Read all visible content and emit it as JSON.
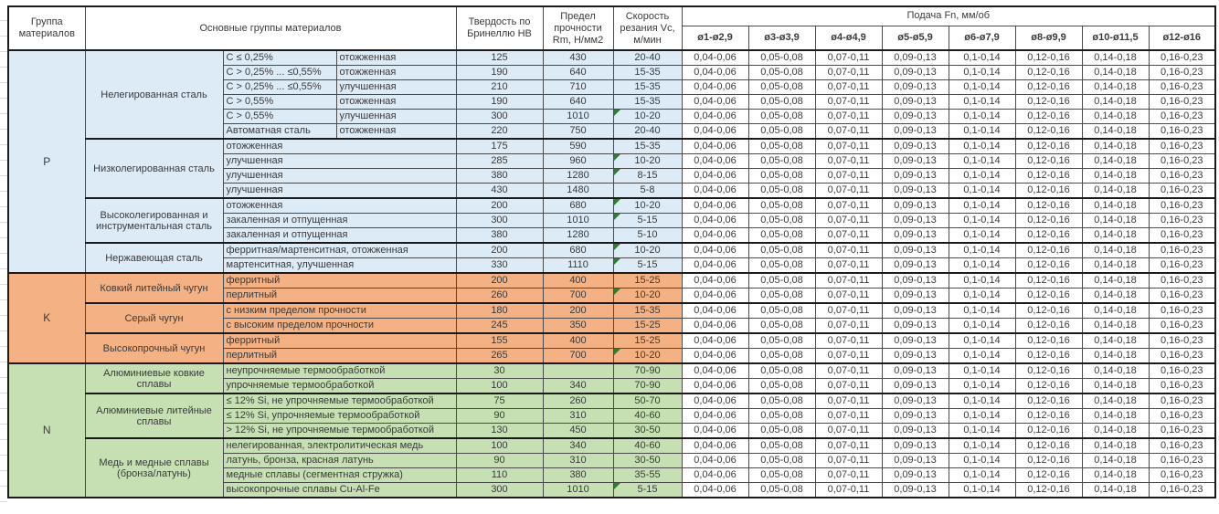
{
  "header": {
    "col_group": "Группа материалов",
    "col_main": "Основные группы материалов",
    "col_hb": "Твердость по Бринеллю HB",
    "col_rm": "Предел прочности Rm, Н/мм2",
    "col_vc": "Скорость резания Vc, м/мин",
    "feed_title": "Подача Fn, мм/об",
    "feed_cols": [
      "ø1-ø2,9",
      "ø3-ø3,9",
      "ø4-ø4,9",
      "ø5-ø5,9",
      "ø6-ø7,9",
      "ø8-ø9,9",
      "ø10-ø11,5",
      "ø12-ø16"
    ]
  },
  "feed_values": [
    "0,04-0,06",
    "0,05-0,08",
    "0,07-0,11",
    "0,09-0,13",
    "0,1-0,14",
    "0,12-0,16",
    "0,14-0,18",
    "0,16-0,23"
  ],
  "colors": {
    "group_p": "#DDEBF7",
    "group_k": "#F4B183",
    "group_n": "#C6E0B4",
    "note_triangle": "#2e7d32"
  },
  "groups": [
    {
      "code": "P",
      "color": "#DDEBF7",
      "subgroups": [
        {
          "name": "Нелегированная сталь",
          "rows": [
            {
              "c1": "C ≤ 0,25%",
              "c2": "отожженная",
              "hb": "125",
              "rm": "430",
              "vc": "20-40",
              "note": false
            },
            {
              "c1": "C > 0,25% ... ≤0,55%",
              "c2": "отожженная",
              "hb": "190",
              "rm": "640",
              "vc": "15-35",
              "note": false
            },
            {
              "c1": "C > 0,25% ... ≤0,55%",
              "c2": "улучшенная",
              "hb": "210",
              "rm": "710",
              "vc": "15-35",
              "note": false
            },
            {
              "c1": "C > 0,55%",
              "c2": "отожженная",
              "hb": "190",
              "rm": "640",
              "vc": "15-35",
              "note": false
            },
            {
              "c1": "C > 0,55%",
              "c2": "улучшенная",
              "hb": "300",
              "rm": "1010",
              "vc": "10-20",
              "note": true
            },
            {
              "c1": "Автоматная сталь",
              "c2": "отожженная",
              "hb": "220",
              "rm": "750",
              "vc": "20-40",
              "note": false
            }
          ]
        },
        {
          "name": "Низколегированная сталь",
          "rows": [
            {
              "c": "отожженная",
              "hb": "175",
              "rm": "590",
              "vc": "15-35",
              "note": false
            },
            {
              "c": "улучшенная",
              "hb": "285",
              "rm": "960",
              "vc": "10-20",
              "note": true
            },
            {
              "c": "улучшенная",
              "hb": "380",
              "rm": "1280",
              "vc": "8-15",
              "note": true
            },
            {
              "c": "улучшенная",
              "hb": "430",
              "rm": "1480",
              "vc": "5-8",
              "note": false
            }
          ]
        },
        {
          "name": "Высоколегированная и инструментальная сталь",
          "rows": [
            {
              "c": "отожженная",
              "hb": "200",
              "rm": "680",
              "vc": "10-20",
              "note": true
            },
            {
              "c": "закаленная и отпущенная",
              "hb": "300",
              "rm": "1010",
              "vc": "5-15",
              "note": true
            },
            {
              "c": "закаленная и отпущенная",
              "hb": "380",
              "rm": "1280",
              "vc": "5-10",
              "note": false
            }
          ]
        },
        {
          "name": "Нержавеющая сталь",
          "rows": [
            {
              "c": "ферритная/мартенситная, отожженная",
              "hb": "200",
              "rm": "680",
              "vc": "10-20",
              "note": true
            },
            {
              "c": "мартенситная, улучшенная",
              "hb": "330",
              "rm": "1110",
              "vc": "5-15",
              "note": true
            }
          ]
        }
      ]
    },
    {
      "code": "K",
      "color": "#F4B183",
      "subgroups": [
        {
          "name": "Ковкий литейный чугун",
          "rows": [
            {
              "c": "ферритный",
              "hb": "200",
              "rm": "400",
              "vc": "15-25",
              "note": false
            },
            {
              "c": "перлитный",
              "hb": "260",
              "rm": "700",
              "vc": "10-20",
              "note": true
            }
          ]
        },
        {
          "name": "Серый чугун",
          "rows": [
            {
              "c": "с низким пределом прочности",
              "hb": "180",
              "rm": "200",
              "vc": "15-35",
              "note": false
            },
            {
              "c": "с высоким пределом прочности",
              "hb": "245",
              "rm": "350",
              "vc": "15-25",
              "note": false
            }
          ]
        },
        {
          "name": "Высокопрочный чугун",
          "rows": [
            {
              "c": "ферритный",
              "hb": "155",
              "rm": "400",
              "vc": "15-25",
              "note": false
            },
            {
              "c": "перлитный",
              "hb": "265",
              "rm": "700",
              "vc": "10-20",
              "note": true
            }
          ]
        }
      ]
    },
    {
      "code": "N",
      "color": "#C6E0B4",
      "subgroups": [
        {
          "name": "Алюминиевые ковкие сплавы",
          "rows": [
            {
              "c": "неупрочняемые термообработкой",
              "hb": "30",
              "rm": "",
              "vc": "70-90",
              "note": false
            },
            {
              "c": "упрочняемые термообработкой",
              "hb": "100",
              "rm": "340",
              "vc": "70-90",
              "note": false
            }
          ]
        },
        {
          "name": "Алюминиевые литейные сплавы",
          "rows": [
            {
              "c": "≤ 12% Si, не упрочняемые термообработкой",
              "hb": "75",
              "rm": "260",
              "vc": "50-70",
              "note": false
            },
            {
              "c": "≤ 12% Si, упрочняемые термообработкой",
              "hb": "90",
              "rm": "310",
              "vc": "40-60",
              "note": false
            },
            {
              "c": "> 12% Si, не упрочняемые термообработкой",
              "hb": "130",
              "rm": "450",
              "vc": "30-50",
              "note": false
            }
          ]
        },
        {
          "name": "Медь и медные сплавы (бронза/латунь)",
          "rows": [
            {
              "c": "нелегированная, электролитическая медь",
              "hb": "100",
              "rm": "340",
              "vc": "40-60",
              "note": false
            },
            {
              "c": "латунь, бронза, красная латунь",
              "hb": "90",
              "rm": "310",
              "vc": "30-50",
              "note": false
            },
            {
              "c": "медные сплавы (сегментная стружка)",
              "hb": "110",
              "rm": "380",
              "vc": "35-55",
              "note": false
            },
            {
              "c": "высокопрочные сплавы Cu-Al-Fe",
              "hb": "300",
              "rm": "1010",
              "vc": "5-15",
              "note": true
            }
          ]
        }
      ]
    }
  ]
}
